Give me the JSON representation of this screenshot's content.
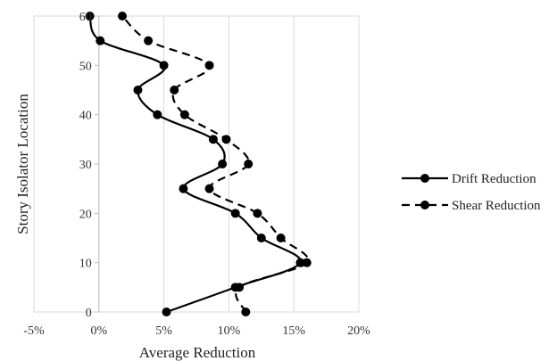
{
  "chart_data": {
    "type": "line",
    "xlabel": "Average Reduction",
    "ylabel": "Story Isolator Location",
    "xlim": [
      -5,
      20
    ],
    "ylim": [
      0,
      60
    ],
    "x_ticks": [
      -5,
      0,
      5,
      10,
      15,
      20
    ],
    "x_tick_labels": [
      "-5%",
      "0%",
      "5%",
      "10%",
      "15%",
      "20%"
    ],
    "y_ticks": [
      0,
      10,
      20,
      30,
      40,
      50,
      60
    ],
    "y_tick_labels": [
      "0",
      "10",
      "20",
      "30",
      "40",
      "50",
      "60"
    ],
    "grid": "vertical",
    "legend_position": "right",
    "series": [
      {
        "name": "Drift Reduction",
        "style": "solid",
        "color": "#000000",
        "points": [
          {
            "x": 5.2,
            "y": 0
          },
          {
            "x": 10.5,
            "y": 5
          },
          {
            "x": 15.5,
            "y": 10
          },
          {
            "x": 12.5,
            "y": 15
          },
          {
            "x": 10.5,
            "y": 20
          },
          {
            "x": 6.5,
            "y": 25
          },
          {
            "x": 9.5,
            "y": 30
          },
          {
            "x": 8.8,
            "y": 35
          },
          {
            "x": 4.5,
            "y": 40
          },
          {
            "x": 3.0,
            "y": 45
          },
          {
            "x": 5.0,
            "y": 50
          },
          {
            "x": 0.1,
            "y": 55
          },
          {
            "x": -0.7,
            "y": 60
          }
        ]
      },
      {
        "name": "Shear Reduction",
        "style": "dashed",
        "color": "#000000",
        "points": [
          {
            "x": 11.3,
            "y": 0
          },
          {
            "x": 10.8,
            "y": 5
          },
          {
            "x": 16.0,
            "y": 10
          },
          {
            "x": 14.0,
            "y": 15
          },
          {
            "x": 12.2,
            "y": 20
          },
          {
            "x": 8.5,
            "y": 25
          },
          {
            "x": 11.5,
            "y": 30
          },
          {
            "x": 9.8,
            "y": 35
          },
          {
            "x": 6.6,
            "y": 40
          },
          {
            "x": 5.8,
            "y": 45
          },
          {
            "x": 8.5,
            "y": 50
          },
          {
            "x": 3.8,
            "y": 55
          },
          {
            "x": 1.8,
            "y": 60
          }
        ]
      }
    ]
  }
}
